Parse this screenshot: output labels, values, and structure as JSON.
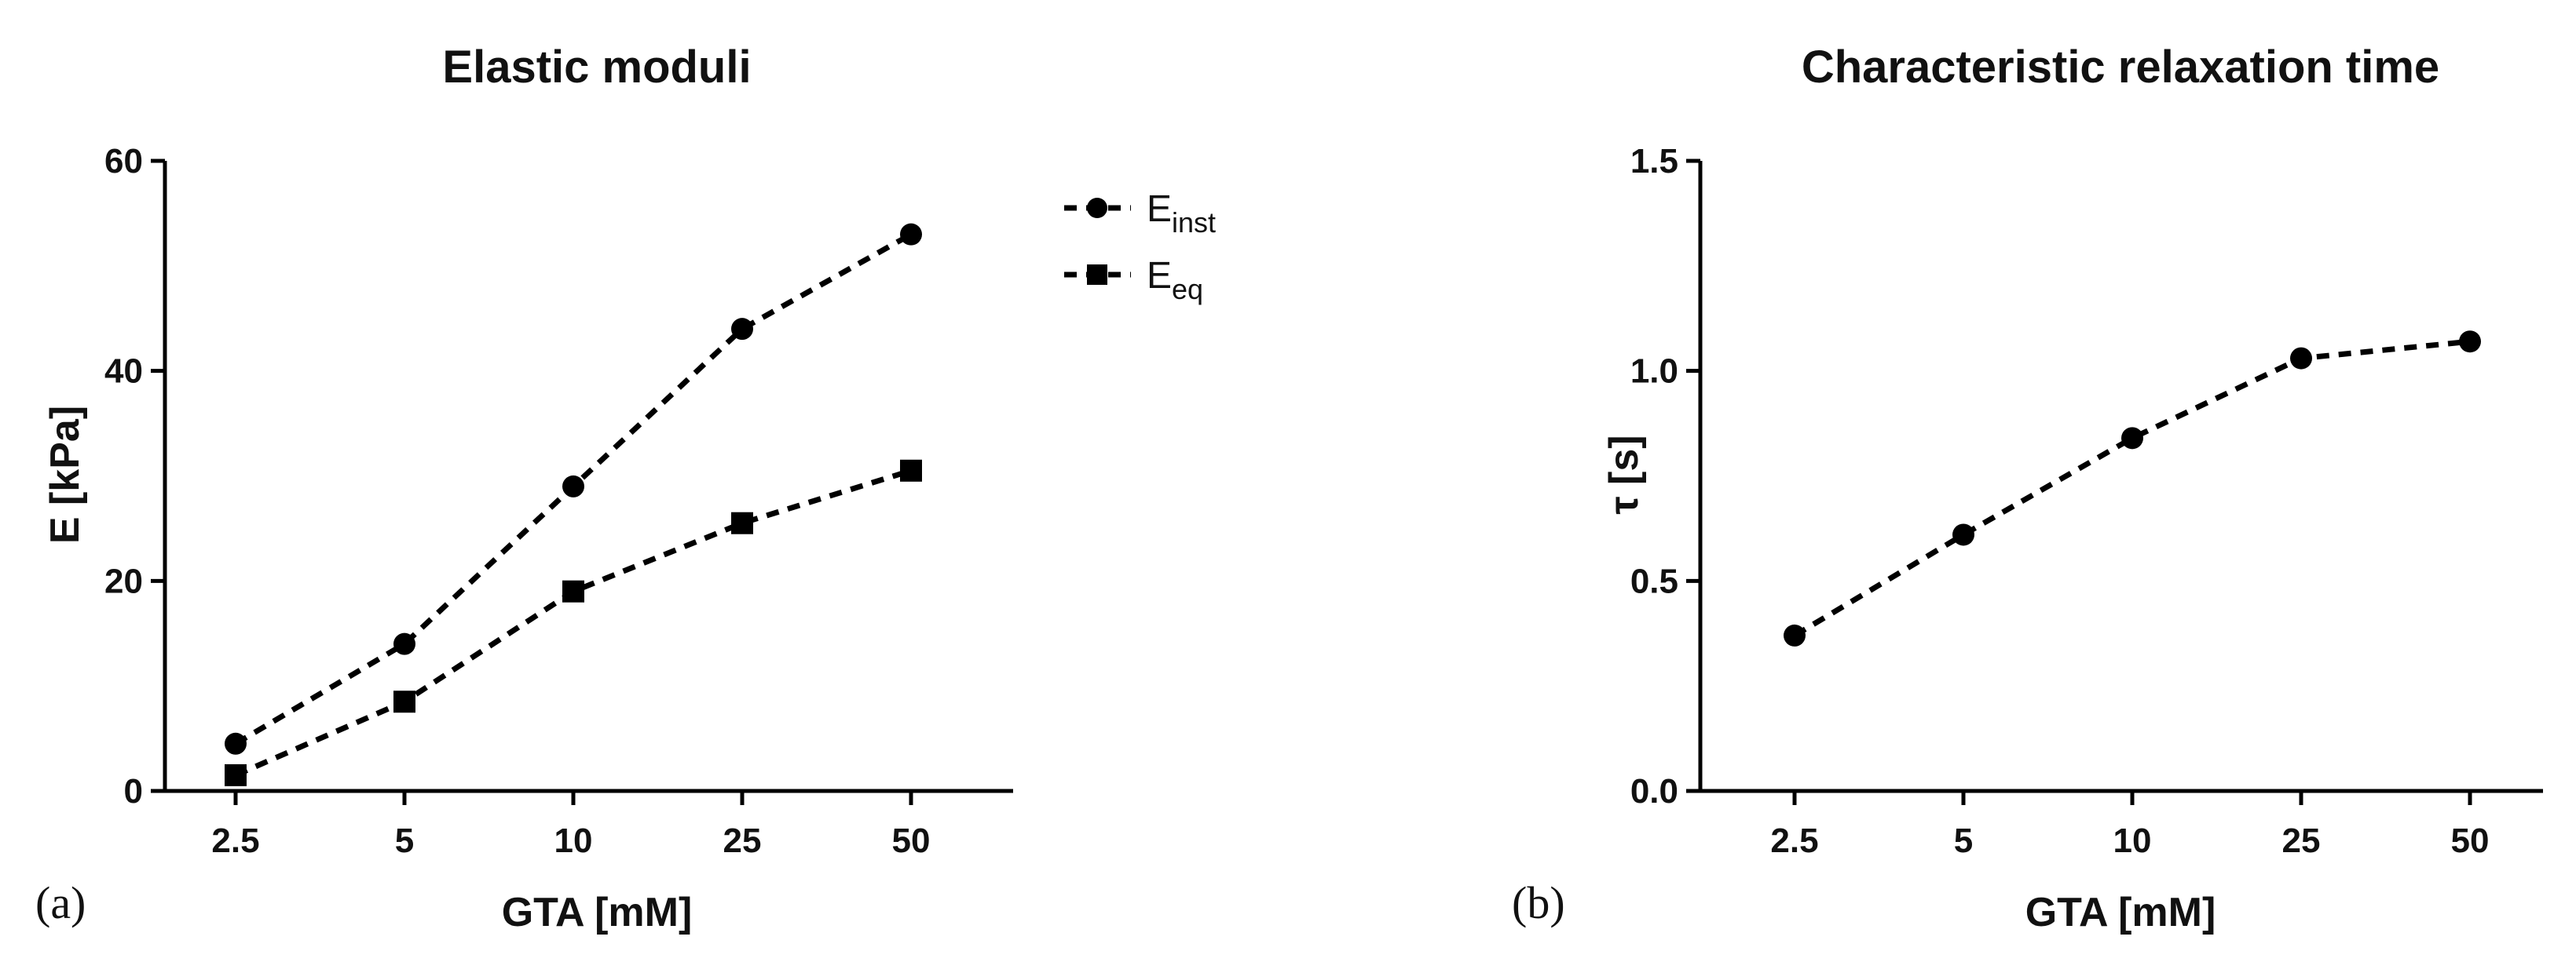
{
  "chart_data": [
    {
      "type": "line",
      "panel_label": "(a)",
      "title": "Elastic moduli",
      "xlabel": "GTA [mM]",
      "ylabel": "E [kPa]",
      "categories": [
        "2.5",
        "5",
        "10",
        "25",
        "50"
      ],
      "ylim": [
        0,
        60
      ],
      "yticks": [
        "0",
        "20",
        "40",
        "60"
      ],
      "grid": false,
      "legend_position": "right of plot",
      "series": [
        {
          "name": "E",
          "name_subscript": "inst",
          "marker": "circle",
          "line": "dashed",
          "values": [
            4.5,
            14,
            29,
            44,
            53
          ]
        },
        {
          "name": "E",
          "name_subscript": "eq",
          "marker": "square",
          "line": "dashed",
          "values": [
            1.5,
            8.5,
            19,
            25.5,
            30.5
          ]
        }
      ]
    },
    {
      "type": "line",
      "panel_label": "(b)",
      "title": "Characteristic relaxation time",
      "xlabel": "GTA [mM]",
      "ylabel": "τ [s]",
      "categories": [
        "2.5",
        "5",
        "10",
        "25",
        "50"
      ],
      "ylim": [
        0,
        1.5
      ],
      "yticks": [
        "0.0",
        "0.5",
        "1.0",
        "1.5"
      ],
      "grid": false,
      "series": [
        {
          "marker": "circle",
          "line": "dashed",
          "values": [
            0.37,
            0.61,
            0.84,
            1.03,
            1.07
          ]
        }
      ]
    }
  ],
  "colors": {
    "ink": "#000000",
    "background": "#ffffff"
  }
}
